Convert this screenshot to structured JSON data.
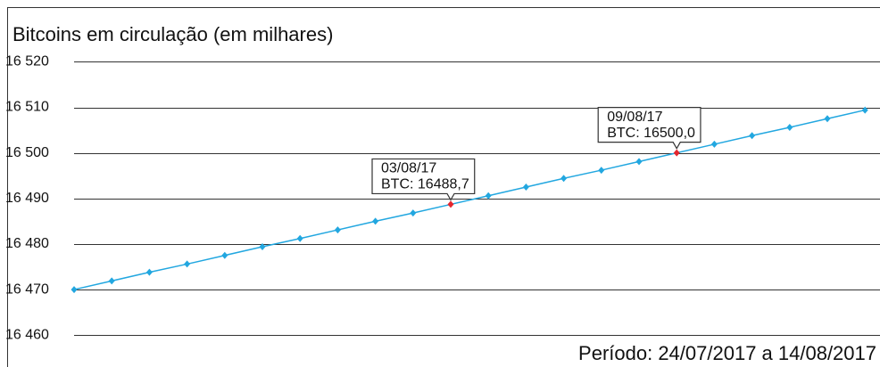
{
  "chart_data": {
    "type": "line",
    "title": "Bitcoins em circulação (em milhares)",
    "note": "Período: 24/07/2017 a 14/08/2017",
    "categories": [
      null,
      null,
      null,
      null,
      null,
      null,
      null,
      null,
      null,
      null,
      "03/08/17",
      null,
      null,
      null,
      null,
      null,
      "09/08/17",
      null,
      null,
      null,
      null,
      null
    ],
    "series": [
      {
        "name": "BTC",
        "color": "#22a7e0",
        "highlight_color": "#e3262e",
        "values": [
          16470.0,
          16471.9,
          16473.8,
          16475.6,
          16477.5,
          16479.4,
          16481.2,
          16483.1,
          16485.0,
          16486.8,
          16488.7,
          16490.6,
          16492.5,
          16494.4,
          16496.2,
          16498.1,
          16500.0,
          16501.9,
          16503.8,
          16505.6,
          16507.5,
          16509.4
        ],
        "value_labels": [
          null,
          null,
          null,
          null,
          null,
          null,
          null,
          null,
          null,
          null,
          "BTC: 16488,7",
          null,
          null,
          null,
          null,
          null,
          "BTC: 16500,0",
          null,
          null,
          null,
          null,
          null
        ]
      }
    ],
    "ylim": [
      16453,
      16532
    ],
    "yticks": [
      {
        "value": 16460,
        "label": "16 460"
      },
      {
        "value": 16470,
        "label": "16 470"
      },
      {
        "value": 16480,
        "label": "16 480"
      },
      {
        "value": 16490,
        "label": "16 490"
      },
      {
        "value": 16500,
        "label": "16 500"
      },
      {
        "value": 16510,
        "label": "16 510"
      },
      {
        "value": 16520,
        "label": "16 520"
      }
    ],
    "grid": true
  }
}
